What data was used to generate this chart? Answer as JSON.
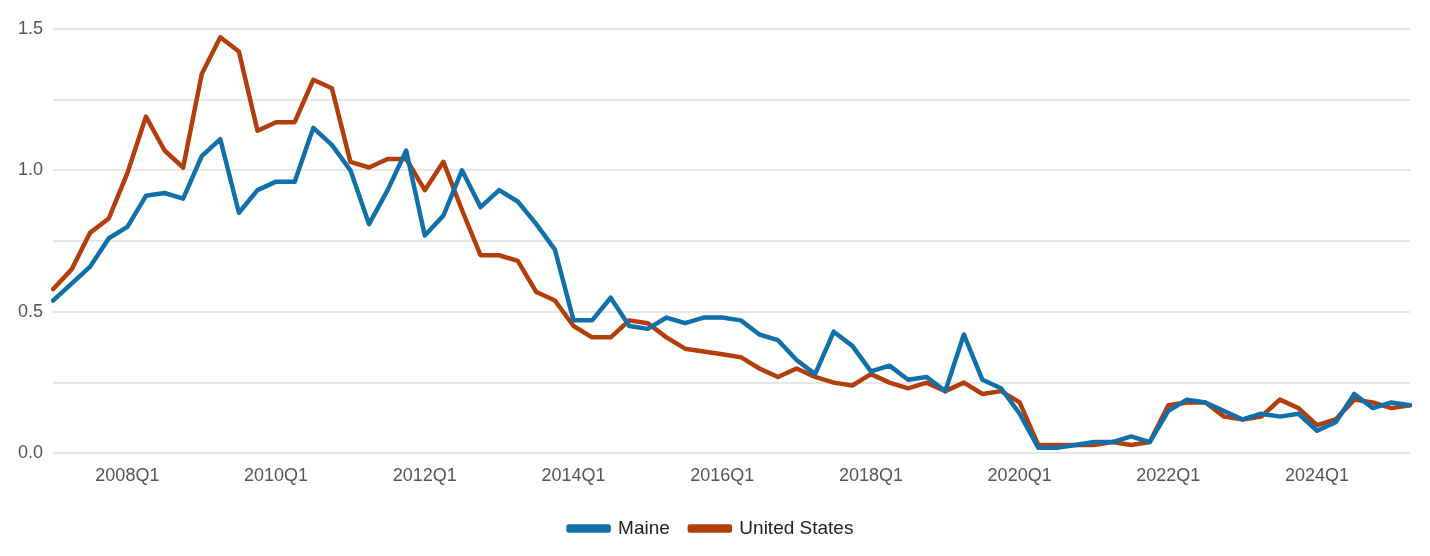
{
  "chart_data": {
    "type": "line",
    "categories": [
      null,
      null,
      null,
      null,
      "2008Q1",
      null,
      null,
      null,
      null,
      null,
      null,
      null,
      "2010Q1",
      null,
      null,
      null,
      null,
      null,
      null,
      null,
      "2012Q1",
      null,
      null,
      null,
      null,
      null,
      null,
      null,
      "2014Q1",
      null,
      null,
      null,
      null,
      null,
      null,
      null,
      "2016Q1",
      null,
      null,
      null,
      null,
      null,
      null,
      null,
      "2018Q1",
      null,
      null,
      null,
      null,
      null,
      null,
      null,
      "2020Q1",
      null,
      null,
      null,
      null,
      null,
      null,
      null,
      "2022Q1",
      null,
      null,
      null,
      null,
      null,
      null,
      null,
      "2024Q1",
      null,
      null,
      null,
      null,
      null
    ],
    "series": [
      {
        "name": "Maine",
        "color": "#1170aa",
        "values": [
          0.54,
          0.6,
          0.66,
          0.76,
          0.8,
          0.91,
          0.92,
          0.9,
          1.05,
          1.11,
          0.85,
          0.93,
          0.96,
          0.96,
          1.15,
          1.09,
          1.0,
          0.81,
          0.93,
          1.07,
          0.77,
          0.84,
          1.0,
          0.87,
          0.93,
          0.89,
          0.81,
          0.72,
          0.47,
          0.47,
          0.55,
          0.45,
          0.44,
          0.48,
          0.46,
          0.48,
          0.48,
          0.47,
          0.42,
          0.4,
          0.33,
          0.28,
          0.43,
          0.38,
          0.29,
          0.31,
          0.26,
          0.27,
          0.22,
          0.42,
          0.26,
          0.23,
          0.14,
          0.02,
          0.02,
          0.03,
          0.04,
          0.04,
          0.06,
          0.04,
          0.15,
          0.19,
          0.18,
          0.15,
          0.12,
          0.14,
          0.13,
          0.14,
          0.08,
          0.11,
          0.21,
          0.16,
          0.18,
          0.17
        ]
      },
      {
        "name": "United States",
        "color": "#b23e0c",
        "values": [
          0.58,
          0.65,
          0.78,
          0.83,
          0.99,
          1.19,
          1.07,
          1.01,
          1.34,
          1.47,
          1.42,
          1.14,
          1.17,
          1.17,
          1.32,
          1.29,
          1.03,
          1.01,
          1.04,
          1.04,
          0.93,
          1.03,
          0.86,
          0.7,
          0.7,
          0.68,
          0.57,
          0.54,
          0.45,
          0.41,
          0.41,
          0.47,
          0.46,
          0.41,
          0.37,
          0.36,
          0.35,
          0.34,
          0.3,
          0.27,
          0.3,
          0.27,
          0.25,
          0.24,
          0.28,
          0.25,
          0.23,
          0.25,
          0.22,
          0.25,
          0.21,
          0.22,
          0.18,
          0.03,
          0.03,
          0.03,
          0.03,
          0.04,
          0.03,
          0.04,
          0.17,
          0.18,
          0.18,
          0.13,
          0.12,
          0.13,
          0.19,
          0.16,
          0.1,
          0.12,
          0.19,
          0.18,
          0.16,
          0.17
        ]
      }
    ],
    "ylim": [
      0,
      1.5
    ],
    "yticks": [
      {
        "value": 0,
        "label": "0.0"
      },
      {
        "value": 0.25,
        "label": null
      },
      {
        "value": 0.5,
        "label": "0.5"
      },
      {
        "value": 0.75,
        "label": null
      },
      {
        "value": 1,
        "label": "1.0"
      },
      {
        "value": 1.25,
        "label": null
      },
      {
        "value": 1.5,
        "label": "1.5"
      }
    ],
    "grid": "y",
    "legend": "bottom",
    "marker": "none",
    "line_style": "solid"
  }
}
